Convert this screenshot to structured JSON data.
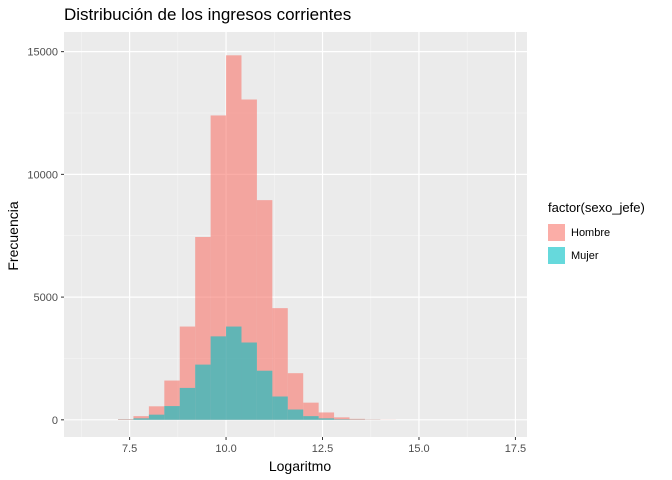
{
  "chart_data": {
    "type": "histogram",
    "title": "Distribución de los ingresos corrientes",
    "xlabel": "Logaritmo",
    "ylabel": "Frecuencia",
    "xlim": [
      5.8,
      17.8
    ],
    "ylim": [
      -700,
      15800
    ],
    "x_ticks": [
      7.5,
      10.0,
      12.5,
      15.0,
      17.5
    ],
    "x_tick_labels": [
      "7.5",
      "10.0",
      "12.5",
      "15.0",
      "17.5"
    ],
    "y_ticks": [
      0,
      5000,
      10000,
      15000
    ],
    "y_tick_labels": [
      "0",
      "5000",
      "10000",
      "15000"
    ],
    "bin_width": 0.4,
    "bin_centers": [
      7.4,
      7.8,
      8.2,
      8.6,
      9.0,
      9.4,
      9.8,
      10.2,
      10.6,
      11.0,
      11.4,
      11.8,
      12.2,
      12.6,
      13.0,
      13.4,
      13.8,
      14.2
    ],
    "grid": true,
    "legend_position": "right",
    "legend_title": "factor(sexo_jefe)",
    "series": [
      {
        "name": "Hombre",
        "color": "#F8766D",
        "values": [
          30,
          150,
          550,
          1600,
          3800,
          7450,
          12400,
          14850,
          13050,
          8950,
          4550,
          1900,
          700,
          300,
          100,
          40,
          15,
          5
        ]
      },
      {
        "name": "Mujer",
        "color": "#00BFC4",
        "values": [
          10,
          60,
          210,
          560,
          1300,
          2250,
          3400,
          3800,
          3150,
          2000,
          950,
          420,
          150,
          60,
          20,
          10,
          5,
          0
        ]
      }
    ]
  }
}
